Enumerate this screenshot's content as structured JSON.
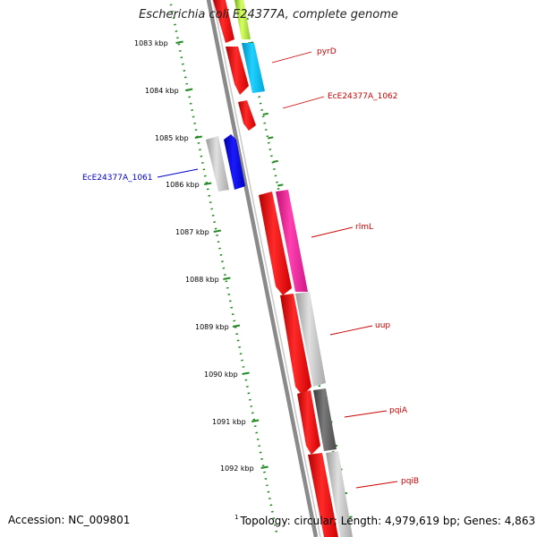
{
  "title": "Escherichia coli E24377A, complete genome",
  "footer": {
    "accession": "Accession: NC_009801",
    "marker": "1",
    "topology": "Topology: circular; Length: 4,979,619 bp; Genes: 4,863"
  },
  "colors": {
    "backbone": "#808080",
    "ticks": "#228B22",
    "forward_label": "#cc0000",
    "reverse_label": "#0000cc"
  },
  "chart_data": {
    "type": "genome_map",
    "scale_labels": [
      "1083 kbp",
      "1084 kbp",
      "1085 kbp",
      "1086 kbp",
      "1087 kbp",
      "1088 kbp",
      "1089 kbp",
      "1090 kbp",
      "1091 kbp",
      "1092 kbp"
    ],
    "genes": [
      {
        "label": "pyrD",
        "strand": "+",
        "color": "#ff0000"
      },
      {
        "label": "EcE24377A_1062",
        "strand": "+",
        "color": "#ff0000"
      },
      {
        "label": "EcE24377A_1061",
        "strand": "-",
        "color": "#0000ff"
      },
      {
        "label": "rlmL",
        "strand": "+",
        "color": "#ff1493"
      },
      {
        "label": "uup",
        "strand": "+",
        "color": "#c0c0c0"
      },
      {
        "label": "pqiA",
        "strand": "+",
        "color": "#606060"
      },
      {
        "label": "pqiB",
        "strand": "+",
        "color": "#c0c0c0"
      }
    ]
  }
}
